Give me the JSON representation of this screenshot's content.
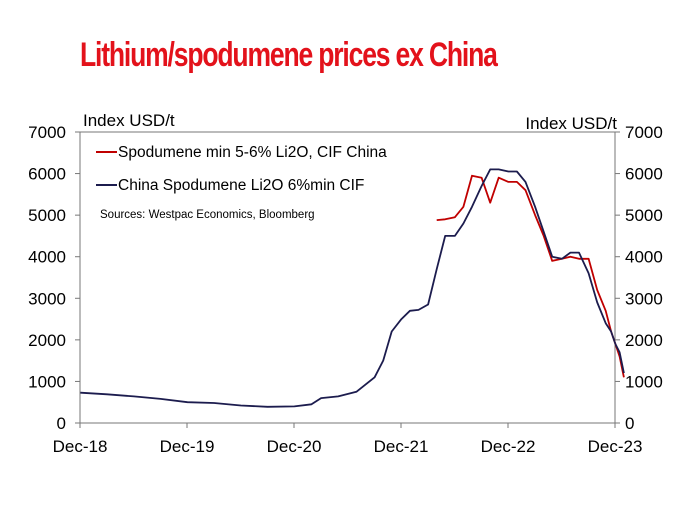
{
  "chart_data": {
    "type": "line",
    "title": "Lithium/spodumene prices ex China",
    "ylabel_left": "Index USD/t",
    "ylabel_right": "Index USD/t",
    "source": "Sources: Westpac Economics, Bloomberg",
    "ylim": [
      0,
      7000
    ],
    "yticks": [
      "0",
      "1000",
      "2000",
      "3000",
      "4000",
      "5000",
      "6000",
      "7000"
    ],
    "xlim": [
      "2018-12",
      "2023-12"
    ],
    "xticks": [
      "Dec-18",
      "Dec-19",
      "Dec-20",
      "Dec-21",
      "Dec-22",
      "Dec-23"
    ],
    "legend_position": "top-left",
    "series": [
      {
        "name": "Spodumene min 5-6% Li2O, CIF China",
        "color": "#c00000",
        "points": [
          [
            2022.25,
            4880
          ],
          [
            2022.33,
            4900
          ],
          [
            2022.42,
            4950
          ],
          [
            2022.5,
            5200
          ],
          [
            2022.58,
            5950
          ],
          [
            2022.67,
            5900
          ],
          [
            2022.75,
            5300
          ],
          [
            2022.83,
            5900
          ],
          [
            2022.92,
            5800
          ],
          [
            2023.0,
            5800
          ],
          [
            2023.08,
            5600
          ],
          [
            2023.17,
            5000
          ],
          [
            2023.25,
            4500
          ],
          [
            2023.33,
            3900
          ],
          [
            2023.42,
            3950
          ],
          [
            2023.5,
            4000
          ],
          [
            2023.58,
            3950
          ],
          [
            2023.67,
            3950
          ],
          [
            2023.75,
            3200
          ],
          [
            2023.83,
            2700
          ],
          [
            2023.88,
            2200
          ],
          [
            2023.92,
            1900
          ],
          [
            2023.96,
            1600
          ],
          [
            2024.0,
            1100
          ]
        ]
      },
      {
        "name": "China Spodumene Li2O 6%min CIF",
        "color": "#1c1c4e",
        "points": [
          [
            2018.92,
            730
          ],
          [
            2019.17,
            690
          ],
          [
            2019.42,
            640
          ],
          [
            2019.67,
            580
          ],
          [
            2019.92,
            500
          ],
          [
            2020.17,
            480
          ],
          [
            2020.42,
            420
          ],
          [
            2020.67,
            390
          ],
          [
            2020.92,
            400
          ],
          [
            2021.08,
            450
          ],
          [
            2021.17,
            600
          ],
          [
            2021.33,
            640
          ],
          [
            2021.5,
            750
          ],
          [
            2021.67,
            1100
          ],
          [
            2021.75,
            1500
          ],
          [
            2021.83,
            2200
          ],
          [
            2021.92,
            2500
          ],
          [
            2022.0,
            2700
          ],
          [
            2022.08,
            2720
          ],
          [
            2022.17,
            2850
          ],
          [
            2022.25,
            3700
          ],
          [
            2022.33,
            4500
          ],
          [
            2022.42,
            4500
          ],
          [
            2022.5,
            4800
          ],
          [
            2022.58,
            5200
          ],
          [
            2022.67,
            5700
          ],
          [
            2022.75,
            6100
          ],
          [
            2022.83,
            6100
          ],
          [
            2022.92,
            6050
          ],
          [
            2023.0,
            6050
          ],
          [
            2023.08,
            5800
          ],
          [
            2023.17,
            5200
          ],
          [
            2023.25,
            4600
          ],
          [
            2023.33,
            4000
          ],
          [
            2023.42,
            3950
          ],
          [
            2023.5,
            4100
          ],
          [
            2023.58,
            4100
          ],
          [
            2023.67,
            3600
          ],
          [
            2023.75,
            2900
          ],
          [
            2023.83,
            2400
          ],
          [
            2023.88,
            2200
          ],
          [
            2023.92,
            1900
          ],
          [
            2023.96,
            1700
          ],
          [
            2024.0,
            1200
          ]
        ]
      }
    ]
  }
}
